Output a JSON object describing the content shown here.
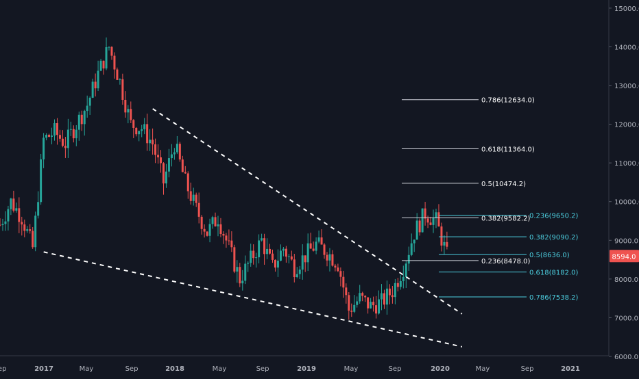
{
  "chart_data": {
    "type": "candlestick",
    "title": "",
    "xlabel": "",
    "ylabel": "",
    "ylim": [
      6000,
      15200
    ],
    "x_ticks": [
      "Sep",
      "2017",
      "May",
      "Sep",
      "2018",
      "May",
      "Sep",
      "2019",
      "May",
      "Sep",
      "2020",
      "May",
      "Sep",
      "2021"
    ],
    "y_ticks": [
      "6000.0",
      "7000.0",
      "8000.0",
      "9000.0",
      "10000.0",
      "11000.0",
      "12000.0",
      "13000.0",
      "14000.0",
      "15000.0"
    ],
    "price_path": [
      [
        "2016-09",
        9400
      ],
      [
        "2016-10",
        10000
      ],
      [
        "2016-11",
        9600
      ],
      [
        "2016-12",
        8800
      ],
      [
        "2017-01",
        11600
      ],
      [
        "2017-02",
        11800
      ],
      [
        "2017-03",
        11500
      ],
      [
        "2017-04",
        12000
      ],
      [
        "2017-05",
        12500
      ],
      [
        "2017-06",
        13300
      ],
      [
        "2017-07",
        14000
      ],
      [
        "2017-08",
        13100
      ],
      [
        "2017-09",
        12000
      ],
      [
        "2017-10",
        11900
      ],
      [
        "2017-11",
        11500
      ],
      [
        "2017-12",
        10500
      ],
      [
        "2018-01",
        11500
      ],
      [
        "2018-02",
        10500
      ],
      [
        "2018-03",
        9800
      ],
      [
        "2018-04",
        9200
      ],
      [
        "2018-05",
        9600
      ],
      [
        "2018-06",
        8800
      ],
      [
        "2018-07",
        8000
      ],
      [
        "2018-08",
        8500
      ],
      [
        "2018-09",
        9000
      ],
      [
        "2018-10",
        8300
      ],
      [
        "2018-11",
        8800
      ],
      [
        "2018-12",
        8300
      ],
      [
        "2019-01",
        8600
      ],
      [
        "2019-02",
        8900
      ],
      [
        "2019-03",
        8700
      ],
      [
        "2019-04",
        8400
      ],
      [
        "2019-05",
        7200
      ],
      [
        "2019-06",
        7500
      ],
      [
        "2019-07",
        7300
      ],
      [
        "2019-08",
        7400
      ],
      [
        "2019-09",
        7700
      ],
      [
        "2019-10",
        8300
      ],
      [
        "2019-11",
        9200
      ],
      [
        "2019-12",
        9700
      ],
      [
        "2020-01",
        9500
      ],
      [
        "2020-02",
        8600
      ]
    ],
    "last_price": "8594.0",
    "fib_retracement_upper": [
      {
        "label": "0.786(12634.0)",
        "value": 12634.0
      },
      {
        "label": "0.618(11364.0)",
        "value": 11364.0
      },
      {
        "label": "0.5(10474.2)",
        "value": 10474.2
      },
      {
        "label": "0.382(9582.2)",
        "value": 9582.2
      },
      {
        "label": "0.236(8478.0)",
        "value": 8478.0
      }
    ],
    "fib_retracement_lower": [
      {
        "label": "0.236(9650.2)",
        "value": 9650.2
      },
      {
        "label": "0.382(9090.2)",
        "value": 9090.2
      },
      {
        "label": "0.5(8636.0)",
        "value": 8636.0
      },
      {
        "label": "0.618(8182.0)",
        "value": 8182.0
      },
      {
        "label": "0.786(7538.2)",
        "value": 7538.2
      }
    ],
    "trendlines": [
      {
        "name": "upper-wedge-line",
        "start": [
          "2017-10",
          12400
        ],
        "end": [
          "2020-03",
          7100
        ],
        "style": "dashed"
      },
      {
        "name": "lower-wedge-line",
        "start": [
          "2016-12",
          8700
        ],
        "end": [
          "2020-03",
          6250
        ],
        "style": "dashed"
      }
    ],
    "colors": {
      "background": "#131722",
      "up": "#26a69a",
      "down": "#ef5350",
      "fib_white": "#d1d4dc",
      "fib_teal": "#4dd0e1",
      "last_price_badge": "#ef5350",
      "text": "#b2b5be"
    }
  }
}
